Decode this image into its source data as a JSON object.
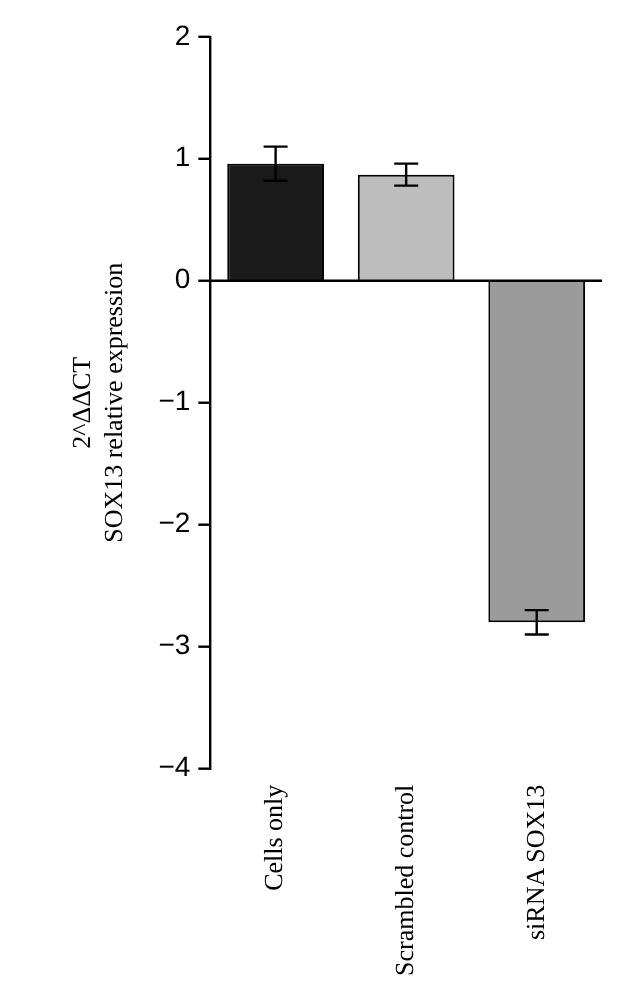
{
  "chart_data": {
    "type": "bar",
    "ylabel": "2^ΔΔCT\nSOX13 relative expression",
    "categories": [
      "Cells only",
      "Scrambled control",
      "siRNA SOX13"
    ],
    "values": [
      0.96,
      0.87,
      -2.8
    ],
    "colors": [
      "#1a1a1a",
      "#bdbdbd",
      "#9b9b9b"
    ],
    "errors": [
      0.14,
      0.09,
      0.1
    ],
    "ylim": [
      -4,
      2
    ],
    "yticks": [
      -4,
      -3,
      -2,
      -1,
      0,
      1,
      2
    ],
    "ref_lines": [
      {
        "axis": "y",
        "value": 0,
        "color": "#000000"
      }
    ],
    "grid": false,
    "legend": false
  }
}
